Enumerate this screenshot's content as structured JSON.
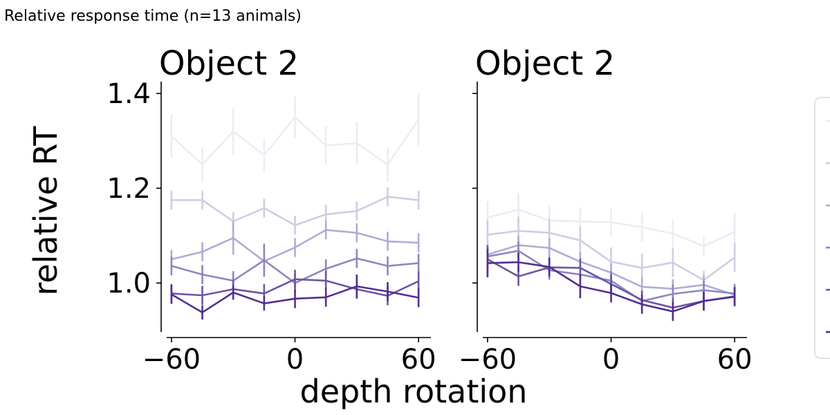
{
  "figure_title": "Relative response time (n=13 animals)",
  "shared": {
    "xlabel": "depth rotation",
    "ylabel": "relative RT"
  },
  "colors": [
    "#ececf4",
    "#cdcde5",
    "#aeacd4",
    "#8c87c0",
    "#6d55a5",
    "#542e8f"
  ],
  "chart_data": [
    {
      "type": "line",
      "title": "Object 2",
      "x": [
        -60,
        -45,
        -30,
        -15,
        0,
        15,
        30,
        45,
        60
      ],
      "xticks": [
        -60,
        0,
        60
      ],
      "xlim": [
        -65,
        66
      ],
      "ylim": [
        0.885,
        1.425
      ],
      "yticks": [
        1.0,
        1.2,
        1.4
      ],
      "yticklabels": [
        "1.0",
        "1.2",
        "1.4"
      ],
      "series": [
        {
          "values": [
            1.31,
            1.25,
            1.32,
            1.27,
            1.35,
            1.29,
            1.295,
            1.25,
            1.345
          ],
          "err": [
            0.045,
            0.035,
            0.05,
            0.035,
            0.045,
            0.04,
            0.045,
            0.035,
            0.055
          ]
        },
        {
          "values": [
            1.175,
            1.175,
            1.13,
            1.158,
            1.122,
            1.145,
            1.152,
            1.182,
            1.175
          ],
          "err": [
            0.02,
            0.02,
            0.02,
            0.02,
            0.02,
            0.02,
            0.02,
            0.02,
            0.02
          ]
        },
        {
          "values": [
            1.05,
            1.066,
            1.095,
            1.046,
            1.075,
            1.112,
            1.106,
            1.088,
            1.085
          ],
          "err": [
            0.02,
            0.02,
            0.035,
            0.02,
            0.02,
            0.02,
            0.02,
            0.02,
            0.02
          ]
        },
        {
          "values": [
            1.036,
            1.018,
            1.005,
            1.048,
            1.0,
            1.03,
            1.052,
            1.036,
            1.042
          ],
          "err": [
            0.02,
            0.02,
            0.02,
            0.035,
            0.02,
            0.02,
            0.02,
            0.02,
            0.02
          ]
        },
        {
          "values": [
            0.978,
            0.974,
            0.987,
            0.978,
            1.008,
            1.005,
            0.987,
            0.973,
            1.004
          ],
          "err": [
            0.02,
            0.02,
            0.02,
            0.02,
            0.02,
            0.02,
            0.02,
            0.02,
            0.02
          ]
        },
        {
          "values": [
            0.976,
            0.938,
            0.98,
            0.957,
            0.967,
            0.97,
            0.993,
            0.982,
            0.969
          ],
          "err": [
            0.02,
            0.015,
            0.015,
            0.015,
            0.02,
            0.02,
            0.025,
            0.02,
            0.02
          ]
        }
      ]
    },
    {
      "type": "line",
      "title": "Object 2",
      "x": [
        -60,
        -45,
        -30,
        -15,
        0,
        15,
        30,
        45,
        60
      ],
      "xticks": [
        -60,
        0,
        60
      ],
      "xlim": [
        -65,
        66
      ],
      "ylim": [
        0.885,
        1.425
      ],
      "yticks": [
        1.0,
        1.2,
        1.4
      ],
      "yticklabels": [
        "",
        "",
        ""
      ],
      "series": [
        {
          "values": [
            1.138,
            1.155,
            1.132,
            1.13,
            1.128,
            1.118,
            1.104,
            1.078,
            1.108
          ],
          "err": [
            0.035,
            0.035,
            0.03,
            0.03,
            0.03,
            0.03,
            0.03,
            0.02,
            0.04
          ]
        },
        {
          "values": [
            1.102,
            1.11,
            1.106,
            1.09,
            1.045,
            1.032,
            1.043,
            1.006,
            1.054
          ],
          "err": [
            0.03,
            0.03,
            0.03,
            0.03,
            0.03,
            0.03,
            0.03,
            0.02,
            0.03
          ]
        },
        {
          "values": [
            1.06,
            1.08,
            1.074,
            1.045,
            1.022,
            0.992,
            0.988,
            0.996,
            0.975
          ],
          "err": [
            0.02,
            0.02,
            0.02,
            0.02,
            0.02,
            0.02,
            0.02,
            0.02,
            0.02
          ]
        },
        {
          "values": [
            1.056,
            1.068,
            1.027,
            1.018,
            1.005,
            0.962,
            0.977,
            0.985,
            0.978
          ],
          "err": [
            0.02,
            0.02,
            0.02,
            0.02,
            0.02,
            0.02,
            0.02,
            0.02,
            0.02
          ]
        },
        {
          "values": [
            1.05,
            1.014,
            1.033,
            1.032,
            0.998,
            0.964,
            0.948,
            0.962,
            0.972
          ],
          "err": [
            0.03,
            0.02,
            0.02,
            0.02,
            0.02,
            0.02,
            0.02,
            0.02,
            0.02
          ]
        },
        {
          "values": [
            1.042,
            1.044,
            1.034,
            0.993,
            0.979,
            0.955,
            0.94,
            0.962,
            0.971
          ],
          "err": [
            0.03,
            0.02,
            0.02,
            0.025,
            0.02,
            0.02,
            0.02,
            0.02,
            0.02
          ]
        }
      ]
    }
  ]
}
